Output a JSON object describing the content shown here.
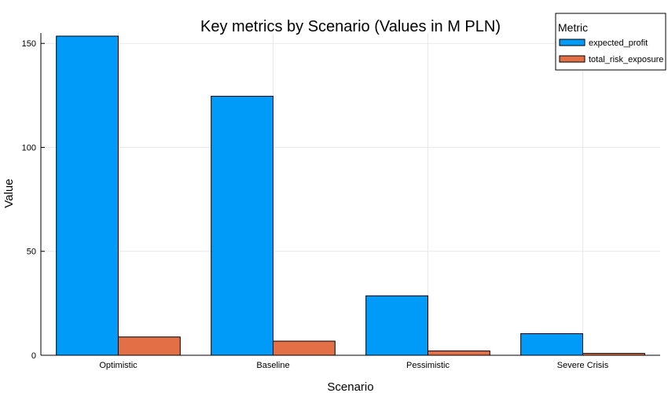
{
  "chart_data": {
    "type": "bar",
    "title": "Key metrics by Scenario (Values in M PLN)",
    "xlabel": "Scenario",
    "ylabel": "Value",
    "categories": [
      "Optimistic",
      "Baseline",
      "Pessimistic",
      "Severe Crisis"
    ],
    "series": [
      {
        "name": "expected_profit",
        "values": [
          153.5,
          124.6,
          28.6,
          10.4
        ],
        "color": "#009af9"
      },
      {
        "name": "total_risk_exposure",
        "values": [
          8.8,
          6.8,
          2.1,
          0.9
        ],
        "color": "#e26f46"
      }
    ],
    "ylim": [
      0,
      155
    ],
    "yticks": [
      0,
      50,
      100,
      150
    ],
    "grid": true,
    "legend": {
      "title": "Metric",
      "position": "top-right"
    }
  }
}
